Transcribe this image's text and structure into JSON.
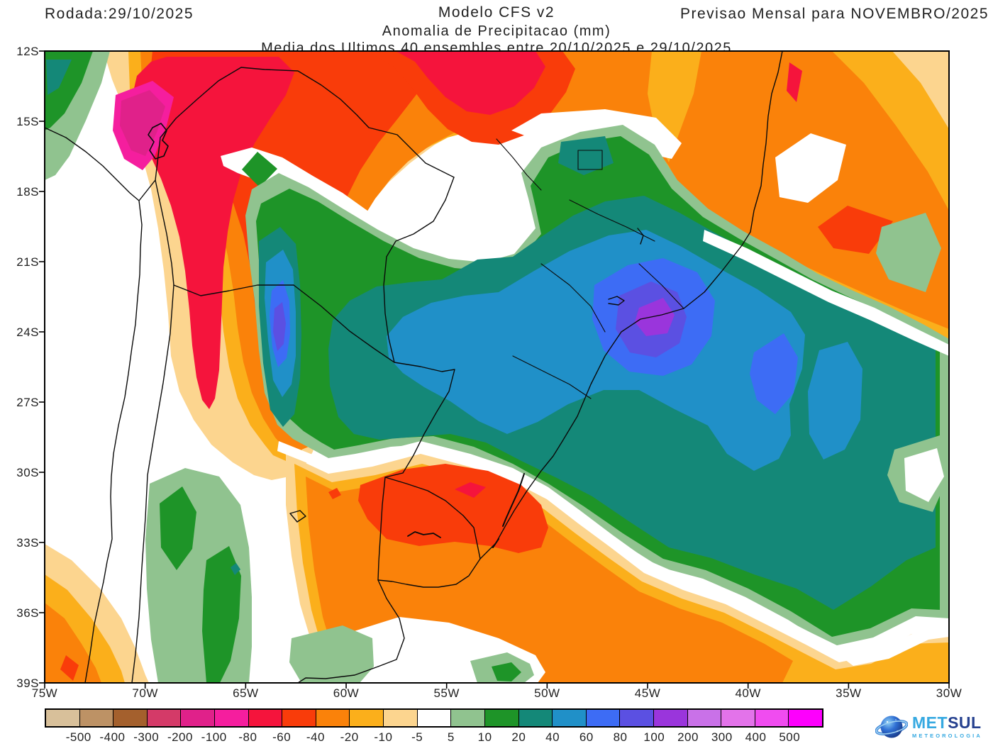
{
  "header": {
    "run_label": "Rodada:29/10/2025",
    "title_line1": "Modelo CFS v2",
    "title_line2": "Anomalia de Precipitacao (mm)",
    "title_line3": "Media dos Ultimos 40 ensembles entre 20/10/2025 e 29/10/2025",
    "forecast_label": "Previsao Mensal para NOVEMBRO/2025"
  },
  "map": {
    "lat_ticks": [
      "12S",
      "15S",
      "18S",
      "21S",
      "24S",
      "27S",
      "30S",
      "33S",
      "36S",
      "39S"
    ],
    "lon_ticks": [
      "75W",
      "70W",
      "65W",
      "60W",
      "55W",
      "50W",
      "45W",
      "40W",
      "35W",
      "30W"
    ]
  },
  "colorbar": {
    "tick_labels": [
      "-500",
      "-400",
      "-300",
      "-200",
      "-100",
      "-80",
      "-60",
      "-40",
      "-20",
      "-10",
      "-5",
      "5",
      "10",
      "20",
      "40",
      "60",
      "80",
      "100",
      "200",
      "300",
      "400",
      "500"
    ],
    "colors": [
      "#d8c09a",
      "#bd9265",
      "#a4602d",
      "#d43a68",
      "#e0218a",
      "#f51e9e",
      "#f5143c",
      "#f93c0a",
      "#fa820a",
      "#fbaf1b",
      "#fcd58f",
      "#ffffff",
      "#90c38f",
      "#1e9428",
      "#148878",
      "#2090c8",
      "#3d6cf5",
      "#5b50e2",
      "#9a35dc",
      "#c971e8",
      "#e373ea",
      "#f04cf0",
      "#fd00fd"
    ]
  },
  "logo": {
    "icon": "planet-with-ring-icon",
    "met": "MET",
    "sul": "SUL",
    "sub": "METEOROLOGIA"
  }
}
